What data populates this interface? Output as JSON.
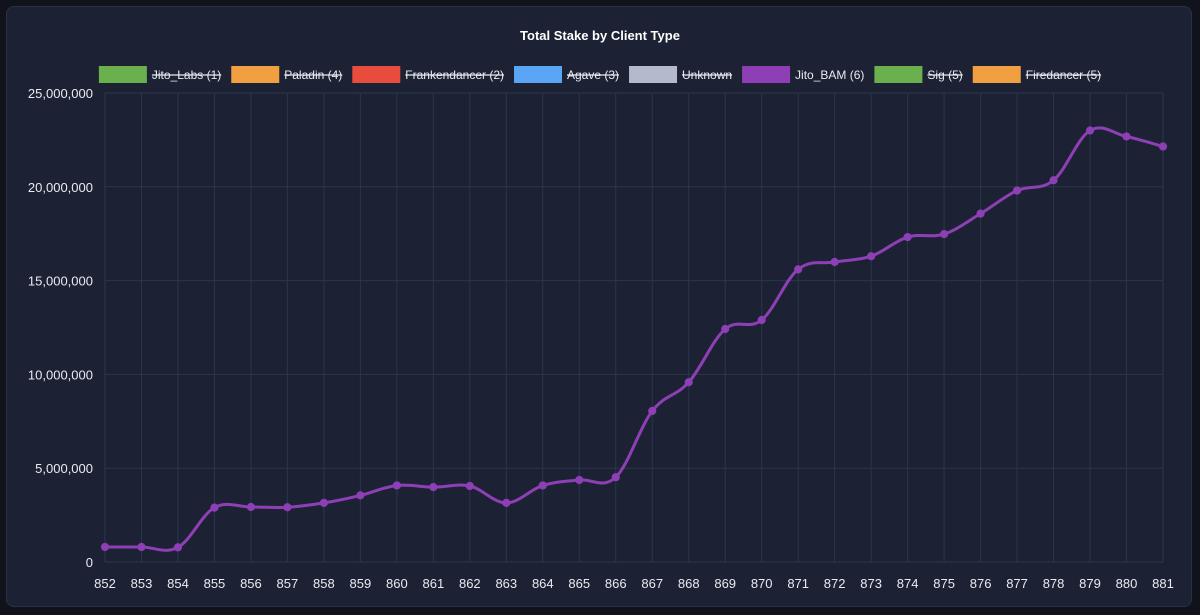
{
  "chart_data": {
    "type": "line",
    "title": "Total Stake by Client Type",
    "xlabel": "",
    "ylabel": "",
    "ylim": [
      0,
      25000000
    ],
    "yticks": [
      "0",
      "5,000,000",
      "10,000,000",
      "15,000,000",
      "20,000,000",
      "25,000,000"
    ],
    "ytick_values": [
      0,
      5000000,
      10000000,
      15000000,
      20000000,
      25000000
    ],
    "categories": [
      "852",
      "853",
      "854",
      "855",
      "856",
      "857",
      "858",
      "859",
      "860",
      "861",
      "862",
      "863",
      "864",
      "865",
      "866",
      "867",
      "868",
      "869",
      "870",
      "871",
      "872",
      "873",
      "874",
      "875",
      "876",
      "877",
      "878",
      "879",
      "880",
      "881"
    ],
    "grid": true,
    "legend_position": "top",
    "legend": [
      {
        "label": "Jito_Labs (1)",
        "color": "#6ab04c",
        "hidden": true
      },
      {
        "label": "Paladin (4)",
        "color": "#f0a040",
        "hidden": true
      },
      {
        "label": "Frankendancer (2)",
        "color": "#e74c3c",
        "hidden": true
      },
      {
        "label": "Agave (3)",
        "color": "#5aa5f5",
        "hidden": true
      },
      {
        "label": "Unknown",
        "color": "#b5b9cc",
        "hidden": true
      },
      {
        "label": "Jito_BAM (6)",
        "color": "#8e3fb5",
        "hidden": false
      },
      {
        "label": "Sig (5)",
        "color": "#6ab04c",
        "hidden": true
      },
      {
        "label": "Firedancer (5)",
        "color": "#f0a040",
        "hidden": true
      }
    ],
    "series": [
      {
        "name": "Jito_BAM (6)",
        "color": "#8e3fb5",
        "values": [
          800000,
          800000,
          780000,
          2900000,
          2930000,
          2920000,
          3150000,
          3550000,
          4080000,
          3990000,
          4050000,
          3150000,
          4080000,
          4370000,
          4520000,
          8050000,
          9580000,
          12420000,
          12900000,
          15600000,
          15990000,
          16300000,
          17320000,
          17480000,
          18570000,
          19800000,
          20350000,
          23000000,
          22680000,
          22150000
        ]
      }
    ]
  }
}
